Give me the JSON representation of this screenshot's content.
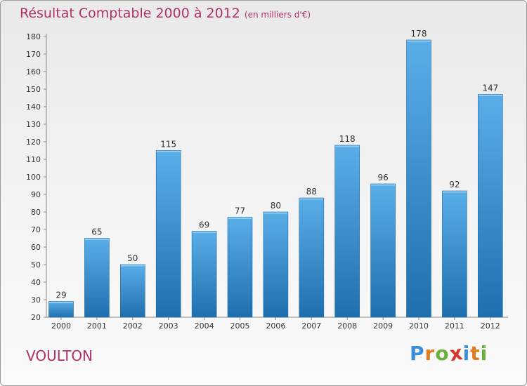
{
  "title": "Résultat Comptable 2000 à 2012",
  "subtitle": "(en milliers d'€)",
  "place": "VOULTON",
  "logo": {
    "letters": [
      "P",
      "r",
      "o",
      "x",
      "i",
      "t",
      "i"
    ],
    "colors": [
      "#3a8fd6",
      "#e07b1e",
      "#6ab03c",
      "#d9342b",
      "#3a8fd6",
      "#e07b1e",
      "#6ab03c"
    ]
  },
  "colors": {
    "bar_top": "#5aaee8",
    "bar_bottom": "#1f6fae",
    "title": "#b0306a"
  },
  "chart_data": {
    "type": "bar",
    "title": "Résultat Comptable 2000 à 2012",
    "subtitle": "(en milliers d'€)",
    "categories": [
      "2000",
      "2001",
      "2002",
      "2003",
      "2004",
      "2005",
      "2006",
      "2007",
      "2008",
      "2009",
      "2010",
      "2011",
      "2012"
    ],
    "values": [
      29,
      65,
      50,
      115,
      69,
      77,
      80,
      88,
      118,
      96,
      178,
      92,
      147
    ],
    "ylim": [
      20,
      180
    ],
    "yticks": [
      20,
      30,
      40,
      50,
      60,
      70,
      80,
      90,
      100,
      110,
      120,
      130,
      140,
      150,
      160,
      170,
      180
    ],
    "grid": false,
    "data_labels": true
  }
}
